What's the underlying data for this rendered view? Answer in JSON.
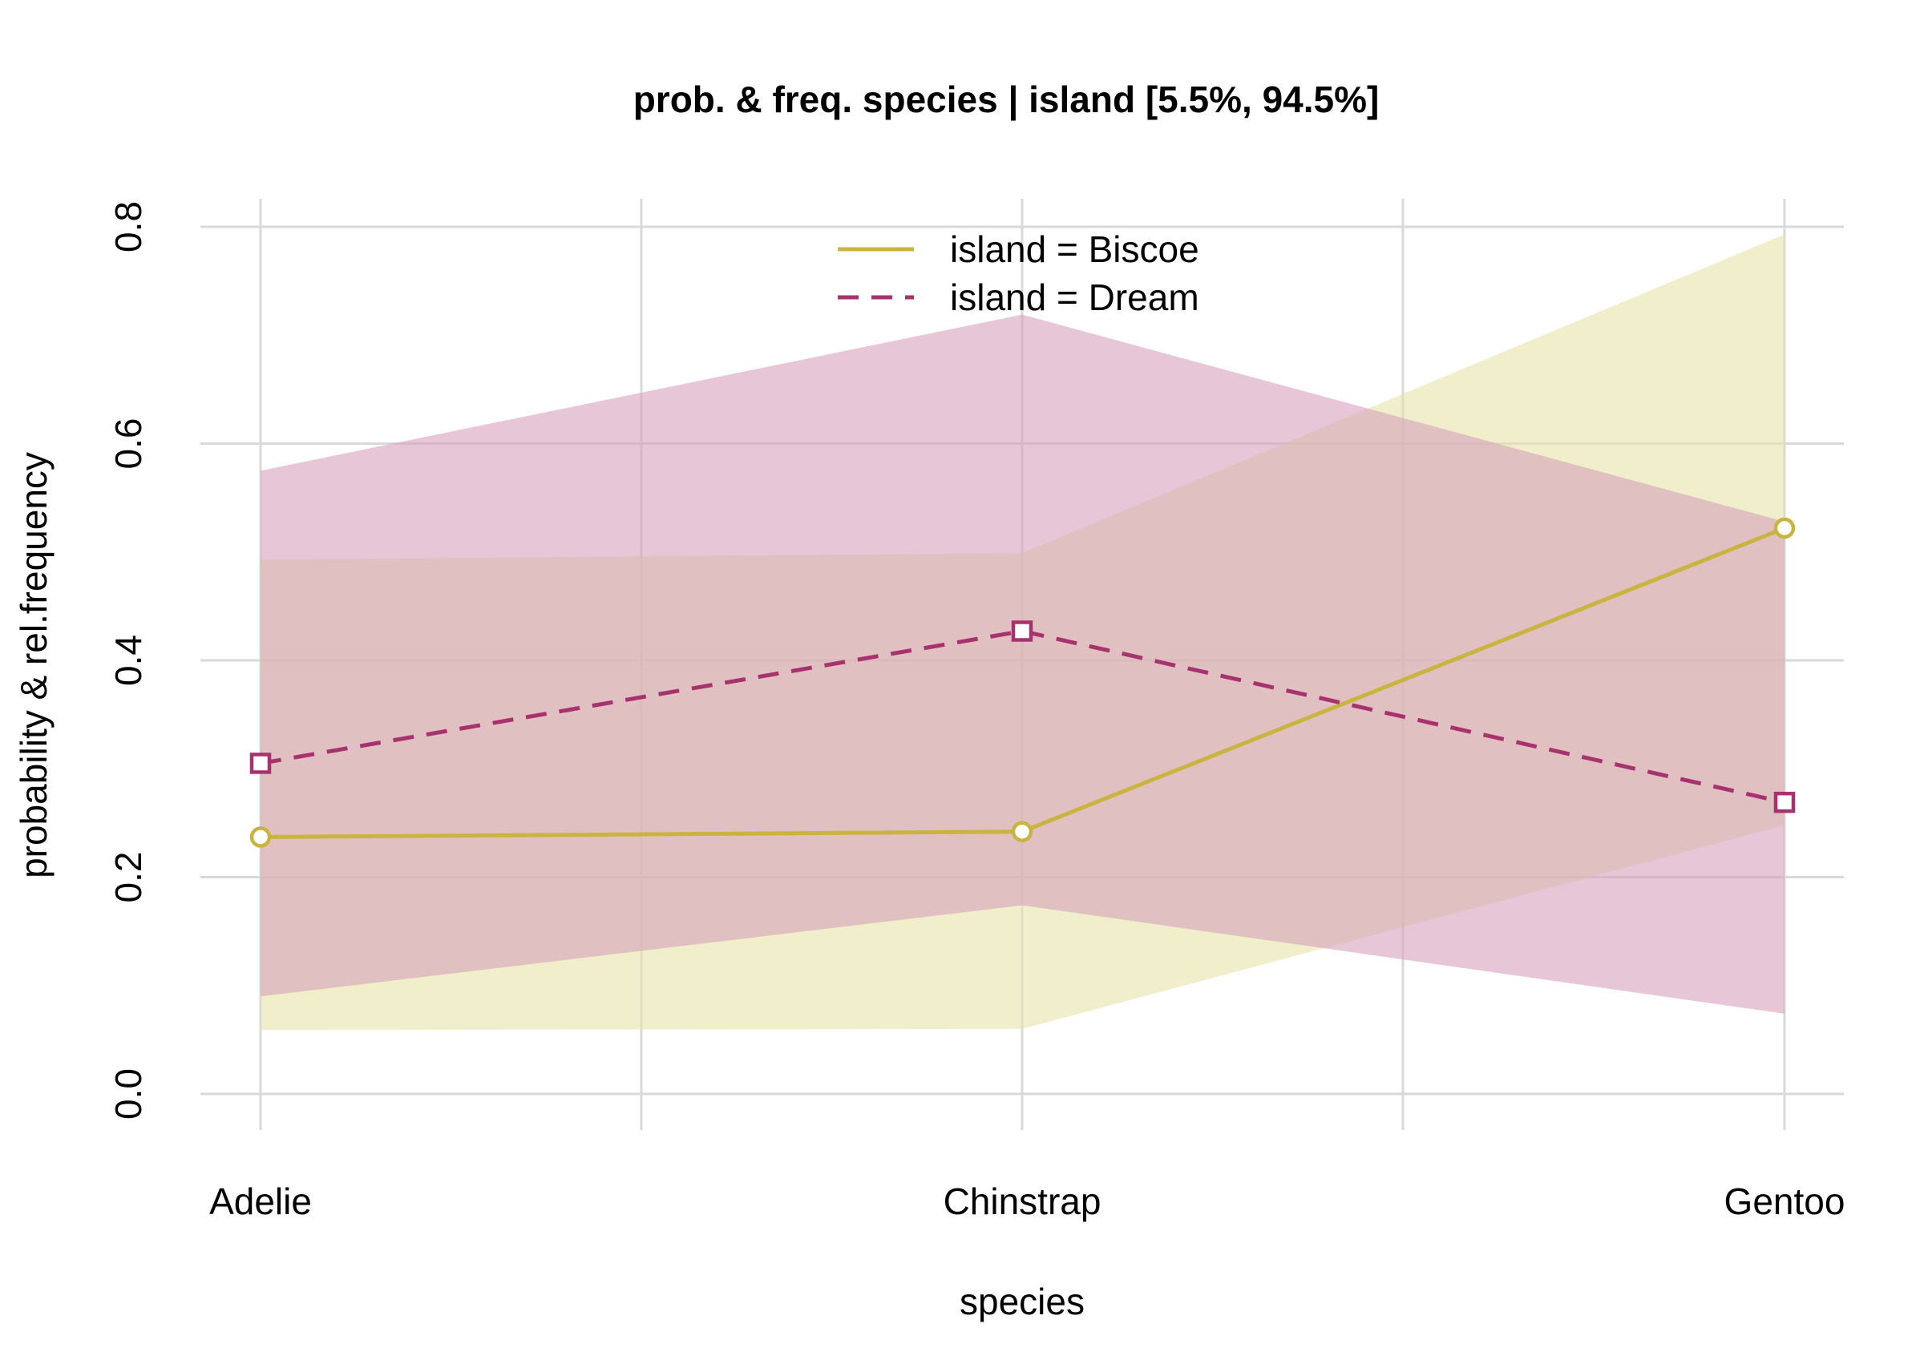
{
  "chart_data": {
    "type": "line",
    "title": "prob. & freq.  species | island  [5.5%, 94.5%]",
    "xlabel": "species",
    "ylabel": "probability & rel.frequency",
    "categories": [
      "Adelie",
      "Chinstrap",
      "Gentoo"
    ],
    "ylim": [
      0,
      0.8
    ],
    "yticks": [
      0.0,
      0.2,
      0.4,
      0.6,
      0.8
    ],
    "ytick_labels": [
      "0.0",
      "0.2",
      "0.4",
      "0.6",
      "0.8"
    ],
    "grid": true,
    "legend_position": "top-center",
    "series": [
      {
        "name": "island = Biscoe",
        "values": [
          0.237,
          0.242,
          0.522
        ],
        "lower": [
          0.059,
          0.06,
          0.248
        ],
        "upper": [
          0.493,
          0.499,
          0.793
        ],
        "color": "#c9b43f",
        "band_color": "#e6e2a8",
        "line_style": "solid",
        "marker": "circle"
      },
      {
        "name": "island = Dream",
        "values": [
          0.305,
          0.427,
          0.269
        ],
        "lower": [
          0.09,
          0.174,
          0.074
        ],
        "upper": [
          0.575,
          0.719,
          0.528
        ],
        "color": "#a8326e",
        "band_color": "#d7a2bd",
        "line_style": "dashed",
        "marker": "square"
      }
    ]
  }
}
